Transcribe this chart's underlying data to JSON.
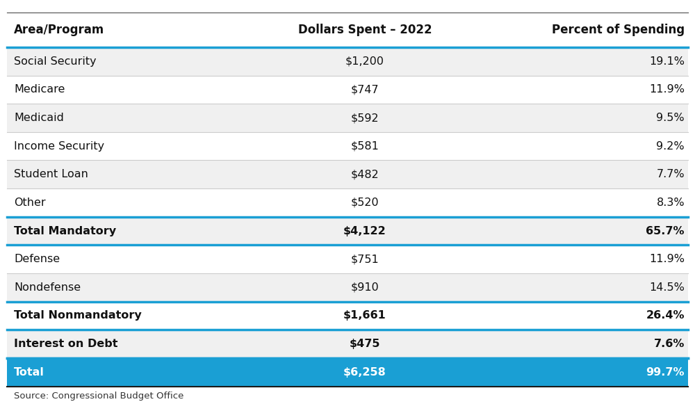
{
  "header": [
    "Area/Program",
    "Dollars Spent – 2022",
    "Percent of Spending"
  ],
  "rows": [
    {
      "label": "Social Security",
      "dollars": "$1,200",
      "percent": "19.1%",
      "bold": false,
      "bg": "#f0f0f0",
      "blue_top": false,
      "blue_bottom": false
    },
    {
      "label": "Medicare",
      "dollars": "$747",
      "percent": "11.9%",
      "bold": false,
      "bg": "#ffffff",
      "blue_top": false,
      "blue_bottom": false
    },
    {
      "label": "Medicaid",
      "dollars": "$592",
      "percent": "9.5%",
      "bold": false,
      "bg": "#f0f0f0",
      "blue_top": false,
      "blue_bottom": false
    },
    {
      "label": "Income Security",
      "dollars": "$581",
      "percent": "9.2%",
      "bold": false,
      "bg": "#ffffff",
      "blue_top": false,
      "blue_bottom": false
    },
    {
      "label": "Student Loan",
      "dollars": "$482",
      "percent": "7.7%",
      "bold": false,
      "bg": "#f0f0f0",
      "blue_top": false,
      "blue_bottom": false
    },
    {
      "label": "Other",
      "dollars": "$520",
      "percent": "8.3%",
      "bold": false,
      "bg": "#ffffff",
      "blue_top": false,
      "blue_bottom": false
    },
    {
      "label": "Total Mandatory",
      "dollars": "$4,122",
      "percent": "65.7%",
      "bold": true,
      "bg": "#f0f0f0",
      "blue_top": true,
      "blue_bottom": true
    },
    {
      "label": "Defense",
      "dollars": "$751",
      "percent": "11.9%",
      "bold": false,
      "bg": "#ffffff",
      "blue_top": false,
      "blue_bottom": false
    },
    {
      "label": "Nondefense",
      "dollars": "$910",
      "percent": "14.5%",
      "bold": false,
      "bg": "#f0f0f0",
      "blue_top": false,
      "blue_bottom": false
    },
    {
      "label": "Total Nonmandatory",
      "dollars": "$1,661",
      "percent": "26.4%",
      "bold": true,
      "bg": "#ffffff",
      "blue_top": true,
      "blue_bottom": true
    },
    {
      "label": "Interest on Debt",
      "dollars": "$475",
      "percent": "7.6%",
      "bold": true,
      "bg": "#f0f0f0",
      "blue_top": false,
      "blue_bottom": true
    },
    {
      "label": "Total",
      "dollars": "$6,258",
      "percent": "99.7%",
      "bold": true,
      "bg": "#1a9fd4",
      "blue_top": true,
      "blue_bottom": false,
      "total_row": true
    }
  ],
  "source": "Source: Congressional Budget Office",
  "header_bg": "#ffffff",
  "blue_line_color": "#1a9fd4",
  "total_row_text_color": "#ffffff",
  "background_color": "#ffffff"
}
